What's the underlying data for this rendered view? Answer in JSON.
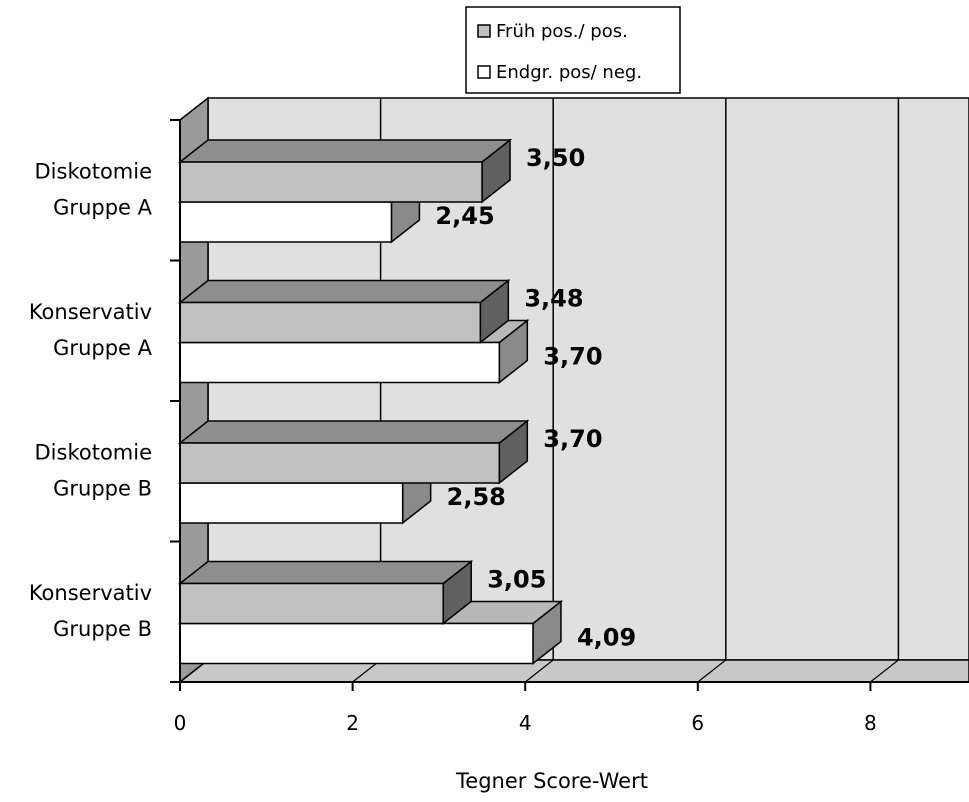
{
  "chart_data": {
    "type": "bar",
    "orientation": "horizontal",
    "style": "3d",
    "categories": [
      [
        "Diskotomie",
        "Gruppe A"
      ],
      [
        "Konservativ",
        "Gruppe A"
      ],
      [
        "Diskotomie",
        "Gruppe B"
      ],
      [
        "Konservativ",
        "Gruppe B"
      ]
    ],
    "series": [
      {
        "name": "Früh pos./ pos.",
        "values": [
          3.5,
          3.48,
          3.7,
          3.05
        ],
        "labels": [
          "3,50",
          "3,48",
          "3,70",
          "3,05"
        ],
        "color": "#c0c0c0"
      },
      {
        "name": "Endgr. pos/ neg.",
        "values": [
          2.45,
          3.7,
          2.58,
          4.09
        ],
        "labels": [
          "2,45",
          "3,70",
          "2,58",
          "4,09"
        ],
        "color": "#ffffff"
      }
    ],
    "xlabel": "Tegner Score-Wert",
    "xticks": [
      "0",
      "2",
      "4",
      "6",
      "8"
    ],
    "xlim": [
      0,
      9
    ],
    "grid": true,
    "legend_position": "top-center"
  },
  "colors": {
    "wall": "#e0e0e0",
    "floor": "#c8c8c8",
    "side_wall": "#9a9a9a",
    "bar_top_gray": "#8e8e8e",
    "bar_side_gray": "#606060",
    "bar_top_white": "#b8b8b8",
    "bar_side_white": "#8a8a8a"
  }
}
